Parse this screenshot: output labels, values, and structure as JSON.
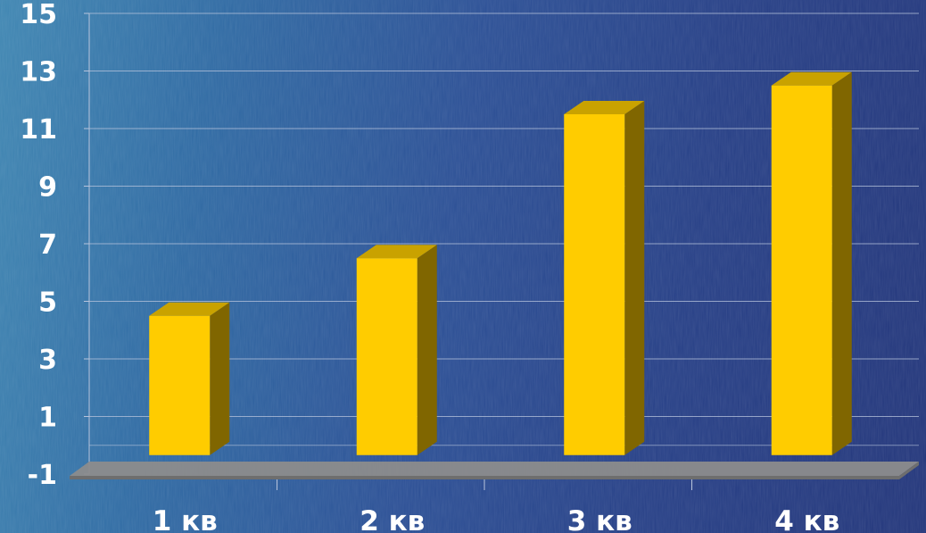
{
  "chart_data": {
    "type": "bar",
    "categories": [
      "1 кв",
      "2 кв",
      "3 кв",
      "4 кв"
    ],
    "values": [
      4.9,
      6.9,
      11.9,
      12.9
    ],
    "ylim": [
      -1,
      15
    ],
    "yticks": [
      "15",
      "13",
      "11",
      "9",
      "7",
      "5",
      "3",
      "1",
      "-1"
    ],
    "ytick_values": [
      15,
      13,
      11,
      9,
      7,
      5,
      3,
      1,
      -1
    ],
    "grid": true,
    "legend": "none",
    "style": "3d-column"
  },
  "colors": {
    "bar_front": "#ffcc00",
    "bar_top": "#c9a200",
    "bar_side": "#806600",
    "floor": "#8c8c8c",
    "gridline": "#b8c4dc",
    "text": "#ffffff"
  }
}
